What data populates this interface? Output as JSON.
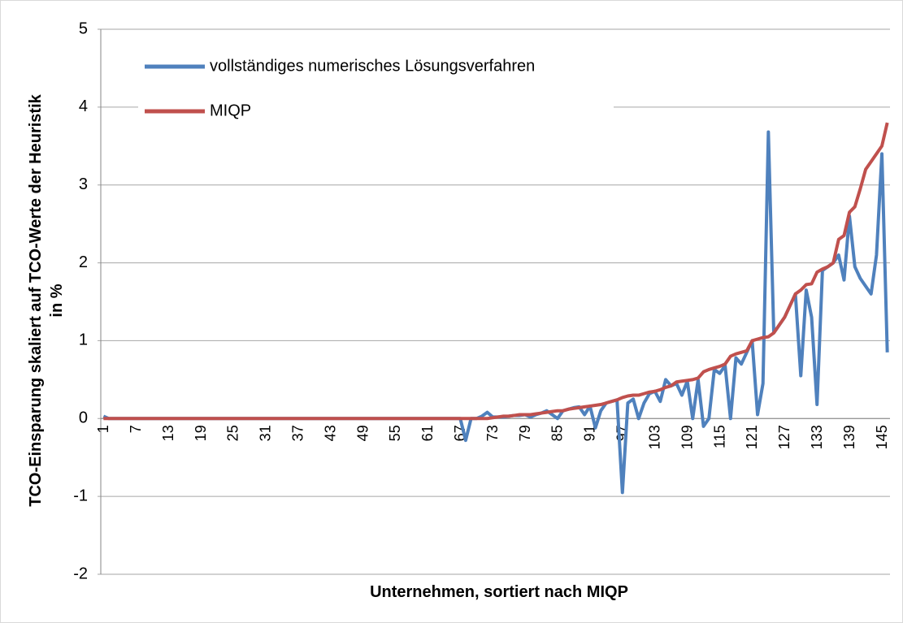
{
  "chart_data": {
    "type": "line",
    "xlabel": "Unternehmen, sortiert nach MIQP",
    "ylabel": [
      "TCO-Einsparung skaliert auf TCO-Werte der Heuristik",
      "in %"
    ],
    "categories": [
      "1",
      null,
      null,
      null,
      null,
      null,
      "7",
      null,
      null,
      null,
      null,
      null,
      "13",
      null,
      null,
      null,
      null,
      null,
      "19",
      null,
      null,
      null,
      null,
      null,
      "25",
      null,
      null,
      null,
      null,
      null,
      "31",
      null,
      null,
      null,
      null,
      null,
      "37",
      null,
      null,
      null,
      null,
      null,
      "43",
      null,
      null,
      null,
      null,
      null,
      "49",
      null,
      null,
      null,
      null,
      null,
      "55",
      null,
      null,
      null,
      null,
      null,
      "61",
      null,
      null,
      null,
      null,
      null,
      "67",
      null,
      null,
      null,
      null,
      null,
      "73",
      null,
      null,
      null,
      null,
      null,
      "79",
      null,
      null,
      null,
      null,
      null,
      "85",
      null,
      null,
      null,
      null,
      null,
      "91",
      null,
      null,
      null,
      null,
      null,
      "97",
      null,
      null,
      null,
      null,
      null,
      "103",
      null,
      null,
      null,
      null,
      null,
      "109",
      null,
      null,
      null,
      null,
      null,
      "115",
      null,
      null,
      null,
      null,
      null,
      "121",
      null,
      null,
      null,
      null,
      null,
      "127",
      null,
      null,
      null,
      null,
      null,
      "133",
      null,
      null,
      null,
      null,
      null,
      "139",
      null,
      null,
      null,
      null,
      null,
      "145",
      null
    ],
    "series": [
      {
        "name": "vollständiges numerisches Lösungsverfahren",
        "color": "#4f81bd",
        "values": [
          0.03,
          0,
          0,
          0,
          0,
          0,
          0,
          0,
          0,
          0,
          0,
          0,
          0,
          0,
          0,
          0,
          0,
          0,
          0,
          0,
          0,
          0,
          0,
          0,
          0,
          0,
          0,
          0,
          0,
          0,
          0,
          0,
          0,
          0,
          0,
          0,
          0,
          0,
          0,
          0,
          0,
          0,
          0,
          0,
          0,
          0,
          0,
          0,
          0,
          0,
          0,
          0,
          0,
          0,
          0,
          0,
          0,
          0,
          0,
          0,
          0,
          0,
          0,
          0,
          0,
          0,
          0,
          -0.28,
          0,
          0,
          0.03,
          0.08,
          0.02,
          0.02,
          0.02,
          0.03,
          0.04,
          0.04,
          0.05,
          0.02,
          0.05,
          0.07,
          0.1,
          0.05,
          0,
          0.1,
          0.12,
          0.14,
          0.15,
          0.05,
          0.16,
          -0.12,
          0.1,
          0.2,
          0.22,
          0.24,
          -0.95,
          0.2,
          0.25,
          0,
          0.2,
          0.32,
          0.35,
          0.22,
          0.5,
          0.42,
          0.45,
          0.3,
          0.48,
          0,
          0.5,
          -0.1,
          0,
          0.63,
          0.58,
          0.68,
          0,
          0.78,
          0.7,
          0.85,
          1.0,
          0.05,
          0.45,
          3.68,
          1.1,
          1.2,
          1.3,
          1.45,
          1.6,
          0.55,
          1.65,
          1.3,
          0.18,
          1.9,
          1.95,
          2.0,
          2.1,
          1.78,
          2.6,
          1.95,
          1.8,
          1.7,
          1.6,
          2.1,
          3.4,
          0.85
        ]
      },
      {
        "name": "MIQP",
        "color": "#c0504d",
        "values": [
          0,
          0,
          0,
          0,
          0,
          0,
          0,
          0,
          0,
          0,
          0,
          0,
          0,
          0,
          0,
          0,
          0,
          0,
          0,
          0,
          0,
          0,
          0,
          0,
          0,
          0,
          0,
          0,
          0,
          0,
          0,
          0,
          0,
          0,
          0,
          0,
          0,
          0,
          0,
          0,
          0,
          0,
          0,
          0,
          0,
          0,
          0,
          0,
          0,
          0,
          0,
          0,
          0,
          0,
          0,
          0,
          0,
          0,
          0,
          0,
          0,
          0,
          0,
          0,
          0,
          0,
          0,
          0,
          0,
          0,
          0,
          0,
          0.01,
          0.02,
          0.03,
          0.03,
          0.04,
          0.05,
          0.05,
          0.05,
          0.06,
          0.07,
          0.08,
          0.09,
          0.1,
          0.1,
          0.12,
          0.13,
          0.14,
          0.15,
          0.16,
          0.17,
          0.18,
          0.2,
          0.22,
          0.24,
          0.27,
          0.29,
          0.3,
          0.3,
          0.32,
          0.34,
          0.35,
          0.37,
          0.4,
          0.42,
          0.47,
          0.48,
          0.49,
          0.5,
          0.52,
          0.6,
          0.63,
          0.65,
          0.67,
          0.7,
          0.8,
          0.83,
          0.85,
          0.87,
          1.0,
          1.02,
          1.04,
          1.05,
          1.1,
          1.2,
          1.3,
          1.45,
          1.6,
          1.65,
          1.72,
          1.73,
          1.88,
          1.92,
          1.95,
          2.0,
          2.3,
          2.35,
          2.65,
          2.72,
          2.95,
          3.2,
          3.3,
          3.4,
          3.5,
          3.8
        ]
      }
    ],
    "ylim": [
      -2,
      5
    ],
    "yticks": [
      -2,
      -1,
      0,
      1,
      2,
      3,
      4,
      5
    ],
    "grid": true,
    "legend": "top-left"
  }
}
